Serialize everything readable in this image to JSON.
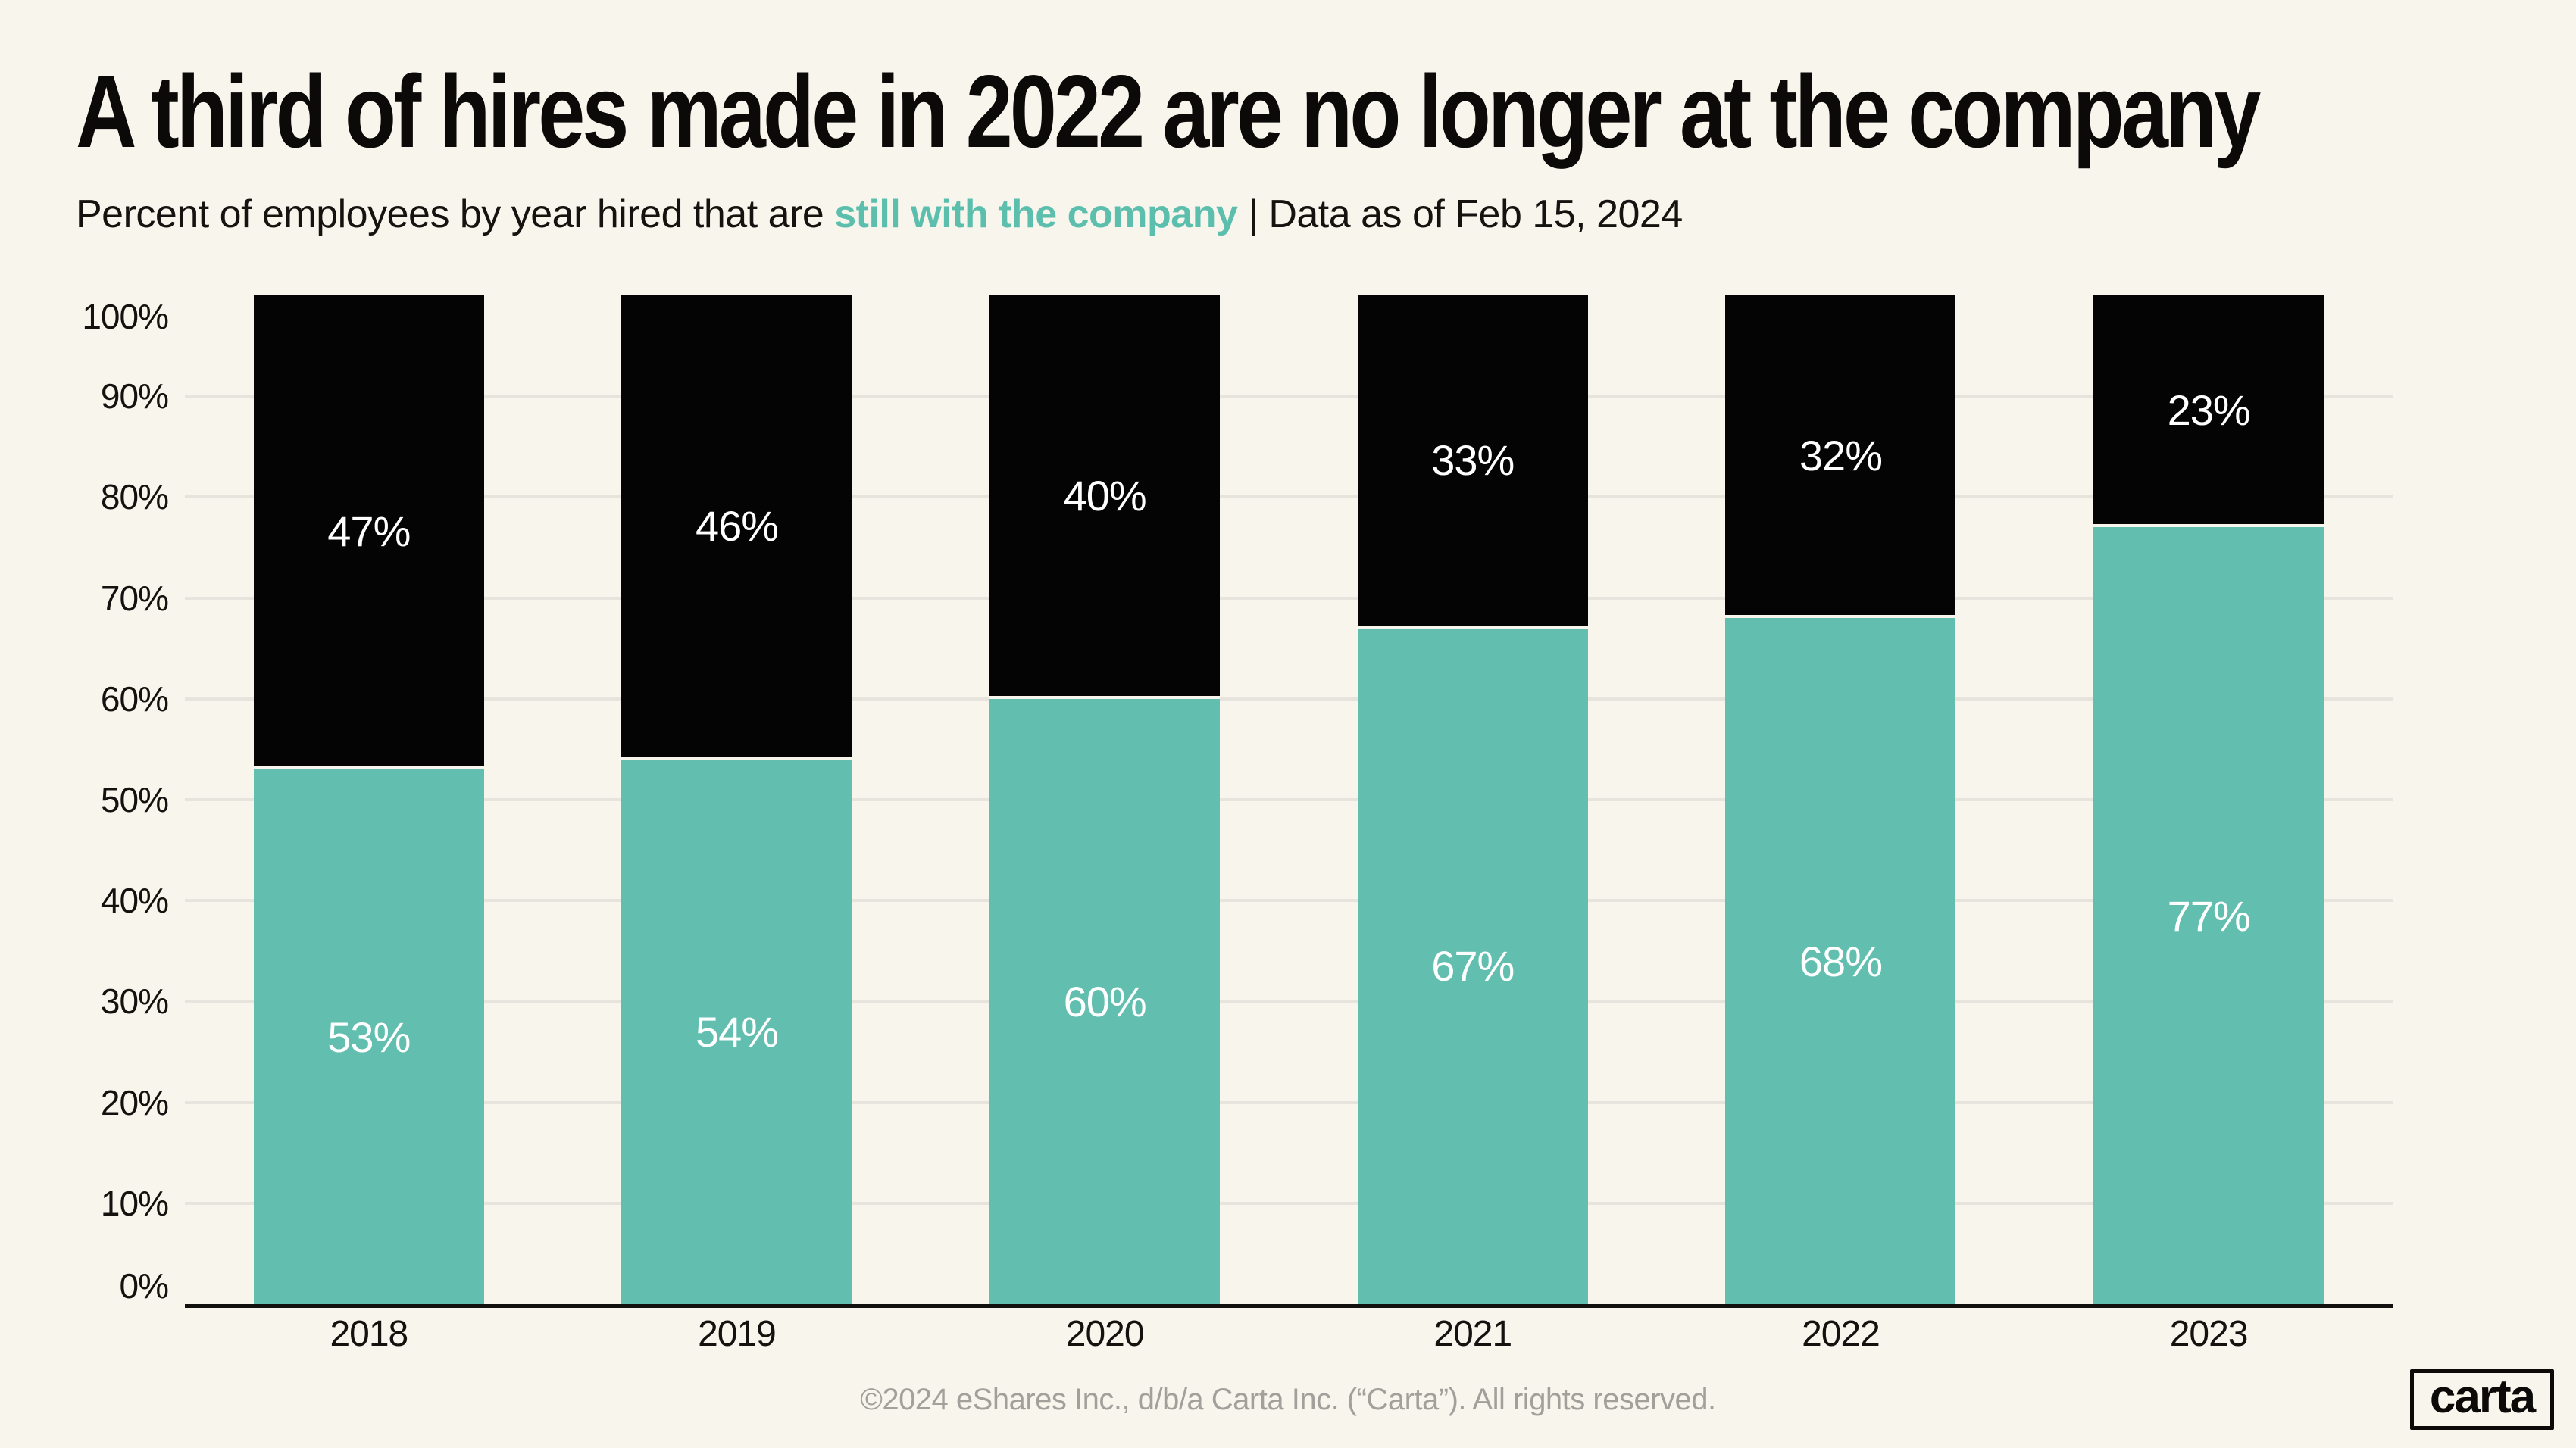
{
  "header": {
    "title": "A third of hires made in 2022 are no longer at the company",
    "subtitle_prefix": "Percent of employees by year hired that are ",
    "subtitle_highlight": "still with the company",
    "subtitle_separator": " | ",
    "subtitle_date": "Data as of Feb 15, 2024"
  },
  "chart_data": {
    "type": "bar",
    "stacked": true,
    "title": "A third of hires made in 2022 are no longer at the company",
    "categories": [
      "2018",
      "2019",
      "2020",
      "2021",
      "2022",
      "2023"
    ],
    "series": [
      {
        "name": "Still with the company",
        "position": "bottom",
        "color": "#62bfaf",
        "values": [
          53,
          54,
          60,
          67,
          68,
          77
        ]
      },
      {
        "name": "No longer at the company",
        "position": "top",
        "color": "#040404",
        "values": [
          47,
          46,
          40,
          33,
          32,
          23
        ]
      }
    ],
    "value_label_format": "{v}%",
    "y_ticks": [
      0,
      10,
      20,
      30,
      40,
      50,
      60,
      70,
      80,
      90,
      100
    ],
    "y_tick_format": "{v}%",
    "ylim": [
      0,
      100
    ],
    "grid": "horizontal gridlines at 10%-90%, none at 0% and 100%",
    "legend": "none"
  },
  "footer": {
    "copyright": "©2024 eShares Inc., d/b/a Carta Inc. (“Carta”). All rights reserved.",
    "logo_text": "carta"
  },
  "colors": {
    "background": "#f8f5ed",
    "teal": "#62bfaf",
    "black": "#040404",
    "gridline": "#e7e4dd",
    "axis": "#121110",
    "value_label": "#ffffff",
    "subtitle_highlight": "#5cbfad",
    "footer_text": "#a2a09a"
  }
}
